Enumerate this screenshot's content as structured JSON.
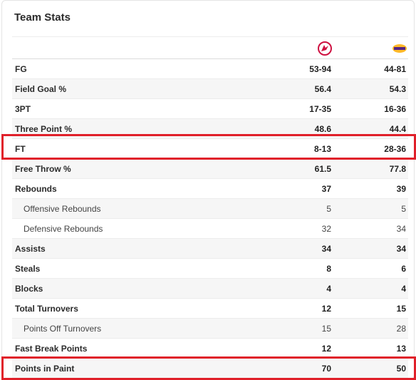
{
  "title": "Team Stats",
  "teams": [
    {
      "name": "Raptors",
      "icon": "raptors-logo-icon",
      "color": "#ce1141"
    },
    {
      "name": "Lakers",
      "icon": "lakers-logo-icon",
      "color": "#552583"
    }
  ],
  "rows": [
    {
      "label": "FG",
      "home": "53-94",
      "away": "44-81",
      "sub": false
    },
    {
      "label": "Field Goal %",
      "home": "56.4",
      "away": "54.3",
      "sub": false
    },
    {
      "label": "3PT",
      "home": "17-35",
      "away": "16-36",
      "sub": false
    },
    {
      "label": "Three Point %",
      "home": "48.6",
      "away": "44.4",
      "sub": false
    },
    {
      "label": "FT",
      "home": "8-13",
      "away": "28-36",
      "sub": false
    },
    {
      "label": "Free Throw %",
      "home": "61.5",
      "away": "77.8",
      "sub": false
    },
    {
      "label": "Rebounds",
      "home": "37",
      "away": "39",
      "sub": false
    },
    {
      "label": "Offensive Rebounds",
      "home": "5",
      "away": "5",
      "sub": true
    },
    {
      "label": "Defensive Rebounds",
      "home": "32",
      "away": "34",
      "sub": true
    },
    {
      "label": "Assists",
      "home": "34",
      "away": "34",
      "sub": false
    },
    {
      "label": "Steals",
      "home": "8",
      "away": "6",
      "sub": false
    },
    {
      "label": "Blocks",
      "home": "4",
      "away": "4",
      "sub": false
    },
    {
      "label": "Total Turnovers",
      "home": "12",
      "away": "15",
      "sub": false
    },
    {
      "label": "Points Off Turnovers",
      "home": "15",
      "away": "28",
      "sub": true
    },
    {
      "label": "Fast Break Points",
      "home": "12",
      "away": "13",
      "sub": false
    },
    {
      "label": "Points in Paint",
      "home": "70",
      "away": "50",
      "sub": false
    }
  ],
  "highlight_color": "#e0202a"
}
